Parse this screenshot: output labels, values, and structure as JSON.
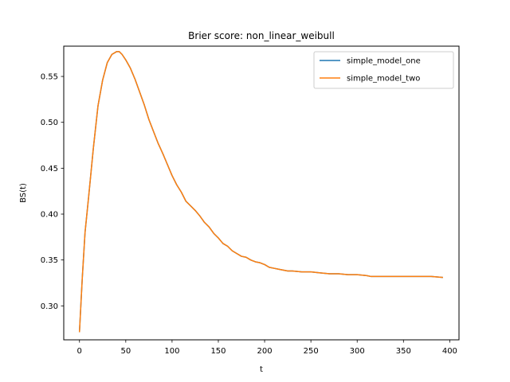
{
  "chart_data": {
    "type": "line",
    "title": "Brier score: non_linear_weibull",
    "xlabel": "t",
    "ylabel": "BS(t)",
    "xlim": [
      -17,
      410
    ],
    "ylim": [
      0.263,
      0.583
    ],
    "xticks": [
      0,
      50,
      100,
      150,
      200,
      250,
      300,
      350,
      400
    ],
    "yticks": [
      0.3,
      0.35,
      0.4,
      0.45,
      0.5,
      0.55
    ],
    "ytick_labels": [
      "0.30",
      "0.35",
      "0.40",
      "0.45",
      "0.50",
      "0.55"
    ],
    "grid": false,
    "legend_position": "top-right",
    "series": [
      {
        "name": "simple_model_one",
        "color": "#1f77b4",
        "x": [
          0,
          3,
          6,
          10,
          15,
          20,
          25,
          30,
          35,
          40,
          43,
          46,
          50,
          55,
          60,
          65,
          70,
          75,
          80,
          85,
          90,
          95,
          100,
          105,
          110,
          115,
          120,
          125,
          130,
          135,
          140,
          145,
          150,
          155,
          160,
          165,
          170,
          175,
          180,
          185,
          190,
          195,
          200,
          205,
          210,
          215,
          220,
          225,
          230,
          240,
          250,
          260,
          270,
          280,
          290,
          300,
          310,
          315,
          320,
          330,
          340,
          350,
          360,
          370,
          380,
          392
        ],
        "y": [
          0.272,
          0.33,
          0.38,
          0.42,
          0.472,
          0.518,
          0.546,
          0.565,
          0.574,
          0.577,
          0.577,
          0.574,
          0.568,
          0.559,
          0.547,
          0.533,
          0.519,
          0.503,
          0.49,
          0.477,
          0.466,
          0.454,
          0.442,
          0.432,
          0.424,
          0.414,
          0.409,
          0.404,
          0.398,
          0.391,
          0.386,
          0.379,
          0.374,
          0.368,
          0.365,
          0.36,
          0.357,
          0.354,
          0.353,
          0.35,
          0.348,
          0.347,
          0.345,
          0.342,
          0.341,
          0.34,
          0.339,
          0.338,
          0.338,
          0.337,
          0.337,
          0.336,
          0.335,
          0.335,
          0.334,
          0.334,
          0.333,
          0.332,
          0.332,
          0.332,
          0.332,
          0.332,
          0.332,
          0.332,
          0.332,
          0.331
        ]
      },
      {
        "name": "simple_model_two",
        "color": "#ff7f0e",
        "x": [
          0,
          3,
          6,
          10,
          15,
          20,
          25,
          30,
          35,
          40,
          43,
          46,
          50,
          55,
          60,
          65,
          70,
          75,
          80,
          85,
          90,
          95,
          100,
          105,
          110,
          115,
          120,
          125,
          130,
          135,
          140,
          145,
          150,
          155,
          160,
          165,
          170,
          175,
          180,
          185,
          190,
          195,
          200,
          205,
          210,
          215,
          220,
          225,
          230,
          240,
          250,
          260,
          270,
          280,
          290,
          300,
          310,
          315,
          320,
          330,
          340,
          350,
          360,
          370,
          380,
          392
        ],
        "y": [
          0.272,
          0.33,
          0.38,
          0.42,
          0.472,
          0.518,
          0.546,
          0.565,
          0.574,
          0.577,
          0.577,
          0.574,
          0.568,
          0.559,
          0.547,
          0.533,
          0.519,
          0.503,
          0.49,
          0.477,
          0.466,
          0.454,
          0.442,
          0.432,
          0.424,
          0.414,
          0.409,
          0.404,
          0.398,
          0.391,
          0.386,
          0.379,
          0.374,
          0.368,
          0.365,
          0.36,
          0.357,
          0.354,
          0.353,
          0.35,
          0.348,
          0.347,
          0.345,
          0.342,
          0.341,
          0.34,
          0.339,
          0.338,
          0.338,
          0.337,
          0.337,
          0.336,
          0.335,
          0.335,
          0.334,
          0.334,
          0.333,
          0.332,
          0.332,
          0.332,
          0.332,
          0.332,
          0.332,
          0.332,
          0.332,
          0.331
        ]
      }
    ]
  }
}
